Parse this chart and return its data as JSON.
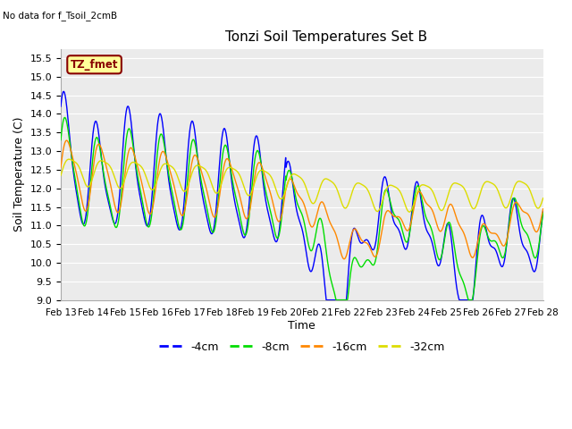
{
  "title": "Tonzi Soil Temperatures Set B",
  "subtitle": "No data for f_Tsoil_2cmB",
  "xlabel": "Time",
  "ylabel": "Soil Temperature (C)",
  "ylim": [
    9.0,
    15.75
  ],
  "yticks": [
    9.0,
    9.5,
    10.0,
    10.5,
    11.0,
    11.5,
    12.0,
    12.5,
    13.0,
    13.5,
    14.0,
    14.5,
    15.0,
    15.5
  ],
  "line_colors": {
    "-4cm": "#0000ff",
    "-8cm": "#00dd00",
    "-16cm": "#ff8800",
    "-32cm": "#dddd00"
  },
  "annotation_box": {
    "text": "TZ_fmet",
    "facecolor": "#ffff99",
    "edgecolor": "#880000",
    "textcolor": "#880000"
  },
  "legend_labels": [
    "-4cm",
    "-8cm",
    "-16cm",
    "-32cm"
  ],
  "x_tick_labels": [
    "Feb 13",
    "Feb 14",
    "Feb 15",
    "Feb 16",
    "Feb 17",
    "Feb 18",
    "Feb 19",
    "Feb 20",
    "Feb 21",
    "Feb 22",
    "Feb 23",
    "Feb 24",
    "Feb 25",
    "Feb 26",
    "Feb 27",
    "Feb 28"
  ],
  "plot_background": "#ebebeb",
  "grid_color": "#ffffff",
  "fig_background": "#ffffff"
}
